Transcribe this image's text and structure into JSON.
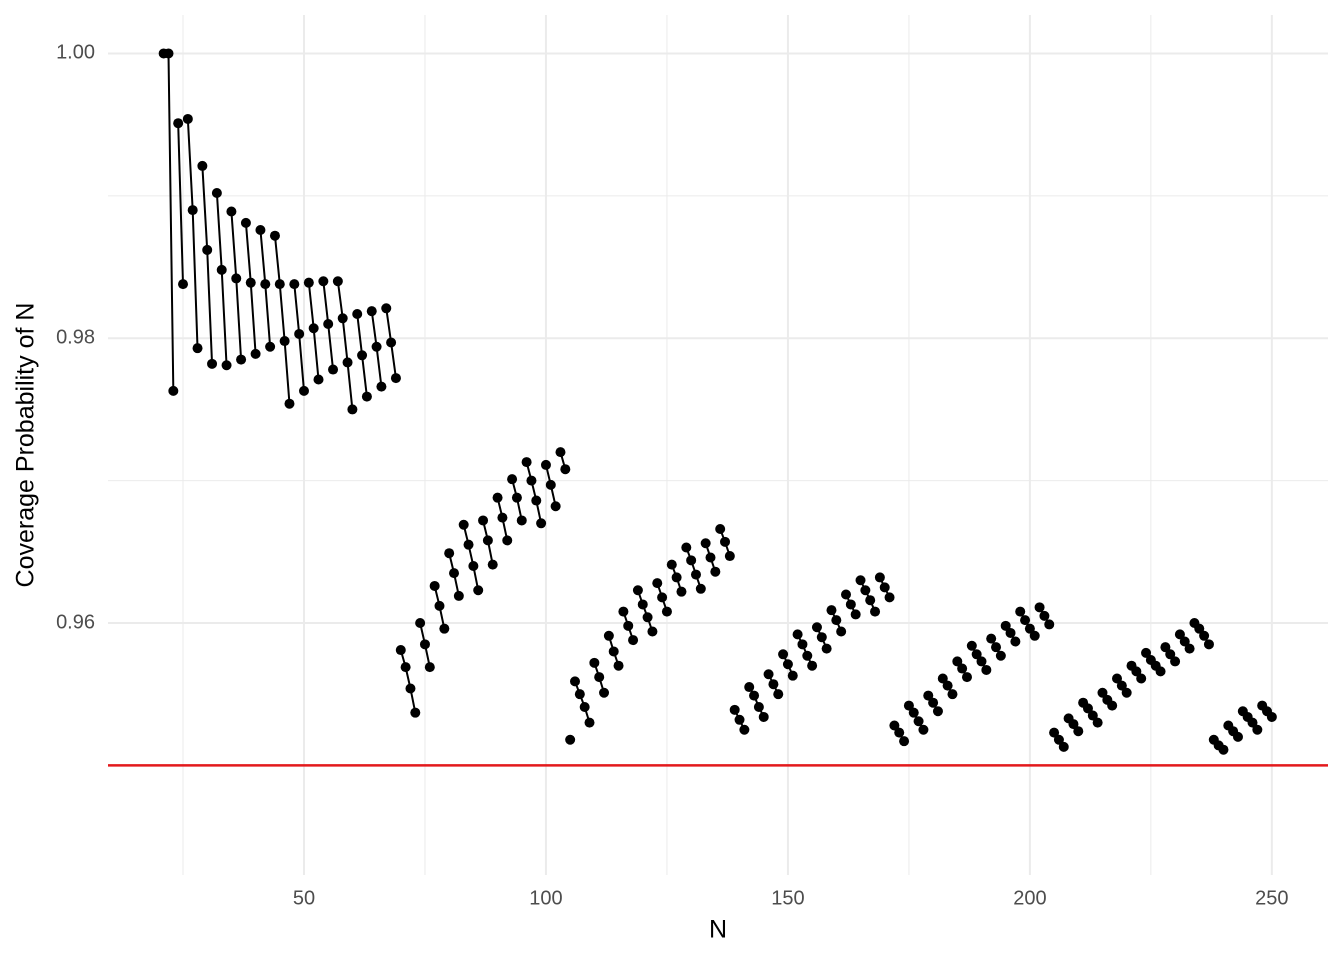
{
  "chart_data": {
    "type": "line",
    "x_label": "N",
    "y_label": "Coverage Probability of N",
    "color": "#000000",
    "points": true,
    "grid": true,
    "xlim": [
      9.5,
      261.6
    ],
    "ylim": [
      0.9423,
      1.0027
    ],
    "xticks": [
      50,
      100,
      150,
      200,
      250
    ],
    "xminor": [
      25,
      75,
      125,
      175,
      225
    ],
    "yticks": [
      0.96,
      0.98,
      {
        "value": 1.0,
        "label": "1.00"
      }
    ],
    "yminor": [
      0.95,
      0.97,
      0.99
    ],
    "hline": {
      "value": 0.95,
      "color": "#e3191c"
    },
    "series": [
      {
        "x": [
          21,
          22,
          23
        ],
        "values": [
          1.0,
          1.0,
          0.9763
        ]
      },
      {
        "x": [
          24,
          25
        ],
        "values": [
          0.9951,
          0.9838
        ]
      },
      {
        "x": [
          26,
          27,
          28
        ],
        "values": [
          0.9954,
          0.989,
          0.9793
        ]
      },
      {
        "x": [
          29,
          30,
          31
        ],
        "values": [
          0.9921,
          0.9862,
          0.9782
        ]
      },
      {
        "x": [
          32,
          33,
          34
        ],
        "values": [
          0.9902,
          0.9848,
          0.9781
        ]
      },
      {
        "x": [
          35,
          36,
          37
        ],
        "values": [
          0.9889,
          0.9842,
          0.9785
        ]
      },
      {
        "x": [
          38,
          39,
          40
        ],
        "values": [
          0.9881,
          0.9839,
          0.9789
        ]
      },
      {
        "x": [
          41,
          42,
          43
        ],
        "values": [
          0.9876,
          0.9838,
          0.9794
        ]
      },
      {
        "x": [
          44,
          45,
          46,
          47
        ],
        "values": [
          0.9872,
          0.9838,
          0.9798,
          0.9754
        ]
      },
      {
        "x": [
          48,
          49,
          50
        ],
        "values": [
          0.9838,
          0.9803,
          0.9763
        ]
      },
      {
        "x": [
          51,
          52,
          53
        ],
        "values": [
          0.9839,
          0.9807,
          0.9771
        ]
      },
      {
        "x": [
          54,
          55,
          56
        ],
        "values": [
          0.984,
          0.981,
          0.9778
        ]
      },
      {
        "x": [
          57,
          58,
          59,
          60
        ],
        "values": [
          0.984,
          0.9814,
          0.9783,
          0.975
        ]
      },
      {
        "x": [
          61,
          62,
          63
        ],
        "values": [
          0.9817,
          0.9788,
          0.9759
        ]
      },
      {
        "x": [
          64,
          65,
          66
        ],
        "values": [
          0.9819,
          0.9794,
          0.9766
        ]
      },
      {
        "x": [
          67,
          68,
          69
        ],
        "values": [
          0.9821,
          0.9797,
          0.9772
        ]
      },
      {
        "x": [
          70,
          71,
          72,
          73
        ],
        "values": [
          0.9581,
          0.9569,
          0.9554,
          0.9537
        ]
      },
      {
        "x": [
          74,
          75,
          76
        ],
        "values": [
          0.96,
          0.9585,
          0.9569
        ]
      },
      {
        "x": [
          77,
          78,
          79
        ],
        "values": [
          0.9626,
          0.9612,
          0.9596
        ]
      },
      {
        "x": [
          80,
          81,
          82
        ],
        "values": [
          0.9649,
          0.9635,
          0.9619
        ]
      },
      {
        "x": [
          83,
          84,
          85,
          86
        ],
        "values": [
          0.9669,
          0.9655,
          0.964,
          0.9623
        ]
      },
      {
        "x": [
          87,
          88,
          89
        ],
        "values": [
          0.9672,
          0.9658,
          0.9641
        ]
      },
      {
        "x": [
          90,
          91,
          92
        ],
        "values": [
          0.9688,
          0.9674,
          0.9658
        ]
      },
      {
        "x": [
          93,
          94,
          95
        ],
        "values": [
          0.9701,
          0.9688,
          0.9672
        ]
      },
      {
        "x": [
          96,
          97,
          98,
          99
        ],
        "values": [
          0.9713,
          0.97,
          0.9686,
          0.967
        ]
      },
      {
        "x": [
          100,
          101,
          102
        ],
        "values": [
          0.9711,
          0.9697,
          0.9682
        ]
      },
      {
        "x": [
          103,
          104
        ],
        "values": [
          0.972,
          0.9708
        ]
      },
      {
        "x": [
          105
        ],
        "values": [
          0.9518
        ]
      },
      {
        "x": [
          106,
          107,
          108,
          109
        ],
        "values": [
          0.9559,
          0.955,
          0.9541,
          0.953
        ]
      },
      {
        "x": [
          110,
          111,
          112
        ],
        "values": [
          0.9572,
          0.9562,
          0.9551
        ]
      },
      {
        "x": [
          113,
          114,
          115
        ],
        "values": [
          0.9591,
          0.958,
          0.957
        ]
      },
      {
        "x": [
          116,
          117,
          118
        ],
        "values": [
          0.9608,
          0.9598,
          0.9588
        ]
      },
      {
        "x": [
          119,
          120,
          121,
          122
        ],
        "values": [
          0.9623,
          0.9613,
          0.9604,
          0.9594
        ]
      },
      {
        "x": [
          123,
          124,
          125
        ],
        "values": [
          0.9628,
          0.9618,
          0.9608
        ]
      },
      {
        "x": [
          126,
          127,
          128
        ],
        "values": [
          0.9641,
          0.9632,
          0.9622
        ]
      },
      {
        "x": [
          129,
          130,
          131,
          132
        ],
        "values": [
          0.9653,
          0.9644,
          0.9634,
          0.9624
        ]
      },
      {
        "x": [
          133,
          134,
          135
        ],
        "values": [
          0.9656,
          0.9646,
          0.9636
        ]
      },
      {
        "x": [
          136,
          137,
          138
        ],
        "values": [
          0.9666,
          0.9657,
          0.9647
        ]
      },
      {
        "x": [
          139,
          140,
          141
        ],
        "values": [
          0.9539,
          0.9532,
          0.9525
        ]
      },
      {
        "x": [
          142,
          143,
          144,
          145
        ],
        "values": [
          0.9555,
          0.9549,
          0.9541,
          0.9534
        ]
      },
      {
        "x": [
          146,
          147,
          148
        ],
        "values": [
          0.9564,
          0.9557,
          0.955
        ]
      },
      {
        "x": [
          149,
          150,
          151
        ],
        "values": [
          0.9578,
          0.9571,
          0.9563
        ]
      },
      {
        "x": [
          152,
          153,
          154,
          155
        ],
        "values": [
          0.9592,
          0.9585,
          0.9577,
          0.957
        ]
      },
      {
        "x": [
          156,
          157,
          158
        ],
        "values": [
          0.9597,
          0.959,
          0.9582
        ]
      },
      {
        "x": [
          159,
          160,
          161
        ],
        "values": [
          0.9609,
          0.9602,
          0.9594
        ]
      },
      {
        "x": [
          162,
          163,
          164
        ],
        "values": [
          0.962,
          0.9613,
          0.9606
        ]
      },
      {
        "x": [
          165,
          166,
          167,
          168
        ],
        "values": [
          0.963,
          0.9623,
          0.9616,
          0.9608
        ]
      },
      {
        "x": [
          169,
          170,
          171
        ],
        "values": [
          0.9632,
          0.9625,
          0.9618
        ]
      },
      {
        "x": [
          172,
          173,
          174
        ],
        "values": [
          0.9528,
          0.9523,
          0.9517
        ]
      },
      {
        "x": [
          175,
          176,
          177,
          178
        ],
        "values": [
          0.9542,
          0.9537,
          0.9531,
          0.9525
        ]
      },
      {
        "x": [
          179,
          180,
          181
        ],
        "values": [
          0.9549,
          0.9544,
          0.9538
        ]
      },
      {
        "x": [
          182,
          183,
          184
        ],
        "values": [
          0.9561,
          0.9556,
          0.955
        ]
      },
      {
        "x": [
          185,
          186,
          187
        ],
        "values": [
          0.9573,
          0.9568,
          0.9562
        ]
      },
      {
        "x": [
          188,
          189,
          190,
          191
        ],
        "values": [
          0.9584,
          0.9578,
          0.9573,
          0.9567
        ]
      },
      {
        "x": [
          192,
          193,
          194
        ],
        "values": [
          0.9589,
          0.9583,
          0.9577
        ]
      },
      {
        "x": [
          195,
          196,
          197
        ],
        "values": [
          0.9598,
          0.9593,
          0.9587
        ]
      },
      {
        "x": [
          198,
          199,
          200,
          201
        ],
        "values": [
          0.9608,
          0.9602,
          0.9596,
          0.9591
        ]
      },
      {
        "x": [
          202,
          203,
          204
        ],
        "values": [
          0.9611,
          0.9605,
          0.9599
        ]
      },
      {
        "x": [
          205,
          206,
          207
        ],
        "values": [
          0.9523,
          0.9518,
          0.9513
        ]
      },
      {
        "x": [
          208,
          209,
          210
        ],
        "values": [
          0.9533,
          0.9529,
          0.9524
        ]
      },
      {
        "x": [
          211,
          212,
          213,
          214
        ],
        "values": [
          0.9544,
          0.954,
          0.9535,
          0.953
        ]
      },
      {
        "x": [
          215,
          216,
          217
        ],
        "values": [
          0.9551,
          0.9546,
          0.9542
        ]
      },
      {
        "x": [
          218,
          219,
          220
        ],
        "values": [
          0.9561,
          0.9556,
          0.9551
        ]
      },
      {
        "x": [
          221,
          222,
          223
        ],
        "values": [
          0.957,
          0.9566,
          0.9561
        ]
      },
      {
        "x": [
          224,
          225,
          226,
          227
        ],
        "values": [
          0.9579,
          0.9574,
          0.957,
          0.9566
        ]
      },
      {
        "x": [
          228,
          229,
          230
        ],
        "values": [
          0.9583,
          0.9578,
          0.9573
        ]
      },
      {
        "x": [
          231,
          232,
          233
        ],
        "values": [
          0.9592,
          0.9587,
          0.9582
        ]
      },
      {
        "x": [
          234,
          235,
          236,
          237
        ],
        "values": [
          0.96,
          0.9596,
          0.9591,
          0.9585
        ]
      },
      {
        "x": [
          238,
          239,
          240
        ],
        "values": [
          0.9518,
          0.9514,
          0.9511
        ]
      },
      {
        "x": [
          241,
          242,
          243
        ],
        "values": [
          0.9528,
          0.9524,
          0.952
        ]
      },
      {
        "x": [
          244,
          245,
          246,
          247
        ],
        "values": [
          0.9538,
          0.9534,
          0.953,
          0.9525
        ]
      },
      {
        "x": [
          248,
          249,
          250
        ],
        "values": [
          0.9542,
          0.9538,
          0.9534
        ]
      }
    ]
  }
}
